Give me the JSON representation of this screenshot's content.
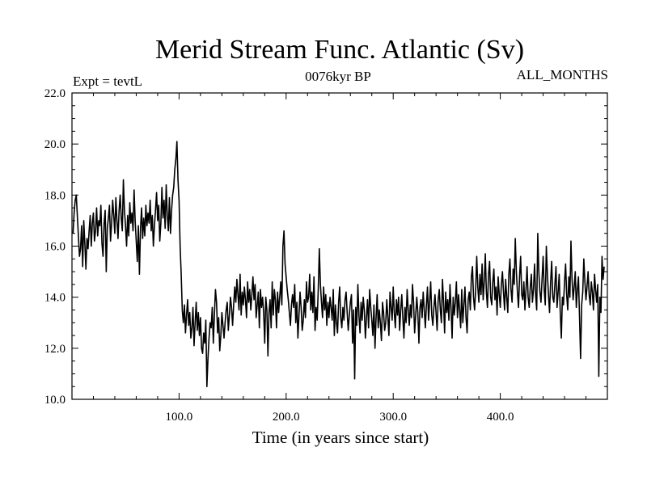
{
  "chart_data": {
    "type": "line",
    "title": "Merid Stream Func. Atlantic (Sv)",
    "subtitle_left": "Expt = tevtL",
    "subtitle_center": "0076kyr BP",
    "subtitle_right": "ALL_MONTHS",
    "xlabel": "Time (in years since start)",
    "ylabel": "",
    "xlim": [
      0,
      500
    ],
    "ylim": [
      10,
      22
    ],
    "x_ticks": [
      100,
      200,
      300,
      400
    ],
    "x_tick_labels": [
      "100.0",
      "200.0",
      "300.0",
      "400.0"
    ],
    "y_ticks": [
      10,
      12,
      14,
      16,
      18,
      20,
      22
    ],
    "y_tick_labels": [
      "10.0",
      "12.0",
      "14.0",
      "16.0",
      "18.0",
      "20.0",
      "22.0"
    ],
    "grid": false,
    "series": [
      {
        "color": "#000000",
        "x_start": 1,
        "x_step": 1,
        "values": [
          16.5,
          17.3,
          17.8,
          18.0,
          17.2,
          16.4,
          15.6,
          15.9,
          16.8,
          15.2,
          17.0,
          16.1,
          15.1,
          16.3,
          15.9,
          16.6,
          17.2,
          16.0,
          16.9,
          17.3,
          16.2,
          16.6,
          17.5,
          16.4,
          17.0,
          16.8,
          17.6,
          16.1,
          15.6,
          16.9,
          17.4,
          15.0,
          16.7,
          17.1,
          17.6,
          16.2,
          16.9,
          17.8,
          17.2,
          16.5,
          17.9,
          17.0,
          16.3,
          17.4,
          18.0,
          17.1,
          16.6,
          18.6,
          17.4,
          16.8,
          16.0,
          17.2,
          16.4,
          17.7,
          16.9,
          17.3,
          16.6,
          18.2,
          17.0,
          16.2,
          15.4,
          16.8,
          14.9,
          16.7,
          17.5,
          16.3,
          17.1,
          16.4,
          17.6,
          16.8,
          17.3,
          16.9,
          17.8,
          16.6,
          17.2,
          16.0,
          16.8,
          17.4,
          18.1,
          17.0,
          17.6,
          16.2,
          16.9,
          18.3,
          17.1,
          17.8,
          16.7,
          18.4,
          17.2,
          16.6,
          17.9,
          16.5,
          17.4,
          18.0,
          18.3,
          19.0,
          19.4,
          20.1,
          18.6,
          17.8,
          16.0,
          14.9,
          13.5,
          13.0,
          13.7,
          12.6,
          13.3,
          13.9,
          12.9,
          13.4,
          12.4,
          12.8,
          13.6,
          12.1,
          13.0,
          13.8,
          12.7,
          13.4,
          12.5,
          13.2,
          12.0,
          11.8,
          12.6,
          12.2,
          13.1,
          10.5,
          11.6,
          12.4,
          13.0,
          12.8,
          13.6,
          12.2,
          13.3,
          14.3,
          13.8,
          12.6,
          13.2,
          11.9,
          12.5,
          13.4,
          12.9,
          12.4,
          13.0,
          13.5,
          13.8,
          12.7,
          13.3,
          14.0,
          13.6,
          12.9,
          13.7,
          14.4,
          13.8,
          14.7,
          14.1,
          13.5,
          14.9,
          13.3,
          14.2,
          13.7,
          14.4,
          13.9,
          13.2,
          14.6,
          13.8,
          14.3,
          13.5,
          14.1,
          14.8,
          13.9,
          14.5,
          13.2,
          13.7,
          14.2,
          12.8,
          14.3,
          13.6,
          14.0,
          13.4,
          12.2,
          14.0,
          13.5,
          11.7,
          13.4,
          13.9,
          12.8,
          14.6,
          13.3,
          14.3,
          13.9,
          12.8,
          14.2,
          13.4,
          14.0,
          14.6,
          13.7,
          16.0,
          16.6,
          15.3,
          14.8,
          14.3,
          13.9,
          13.4,
          12.9,
          13.7,
          14.1,
          13.6,
          14.5,
          13.0,
          13.8,
          12.4,
          13.3,
          14.2,
          13.6,
          12.7,
          13.1,
          13.9,
          13.2,
          14.6,
          13.8,
          14.0,
          14.9,
          13.5,
          14.2,
          13.4,
          14.8,
          12.7,
          13.6,
          13.1,
          14.3,
          15.9,
          14.5,
          13.8,
          13.2,
          14.4,
          13.5,
          14.1,
          12.9,
          13.8,
          13.2,
          14.0,
          13.6,
          13.1,
          14.3,
          12.5,
          13.7,
          13.0,
          12.6,
          13.8,
          14.4,
          13.2,
          12.8,
          13.6,
          13.1,
          13.9,
          14.2,
          13.4,
          12.7,
          13.3,
          13.8,
          14.1,
          12.2,
          13.5,
          10.8,
          13.6,
          12.9,
          14.5,
          13.3,
          12.6,
          13.8,
          13.1,
          14.0,
          13.5,
          12.4,
          13.2,
          13.9,
          12.8,
          14.3,
          13.6,
          13.1,
          12.5,
          13.7,
          12.0,
          13.2,
          14.1,
          12.8,
          13.5,
          13.0,
          12.3,
          13.8,
          13.4,
          12.7,
          13.0,
          13.9,
          13.2,
          12.5,
          14.2,
          13.6,
          13.1,
          14.4,
          13.4,
          12.8,
          13.9,
          13.3,
          14.0,
          12.7,
          13.5,
          14.1,
          13.2,
          12.4,
          13.6,
          13.0,
          14.3,
          13.5,
          12.9,
          13.7,
          13.2,
          14.5,
          13.8,
          12.6,
          13.3,
          14.0,
          13.4,
          12.2,
          13.6,
          13.9,
          13.2,
          14.2,
          13.5,
          12.8,
          13.7,
          14.4,
          13.1,
          13.8,
          14.6,
          13.3,
          12.9,
          13.6,
          14.1,
          13.4,
          12.7,
          13.9,
          14.3,
          13.5,
          13.0,
          14.7,
          13.8,
          12.6,
          14.2,
          13.4,
          13.9,
          13.1,
          14.5,
          13.6,
          12.4,
          14.0,
          13.3,
          13.8,
          14.6,
          13.2,
          14.1,
          13.5,
          12.8,
          14.3,
          13.0,
          13.7,
          14.4,
          13.2,
          12.6,
          13.9,
          14.2,
          13.5,
          14.8,
          15.2,
          14.0,
          13.5,
          14.3,
          15.6,
          14.4,
          13.8,
          14.9,
          14.1,
          15.3,
          13.9,
          14.6,
          15.7,
          14.2,
          13.6,
          14.9,
          15.4,
          14.0,
          13.7,
          14.6,
          15.1,
          13.9,
          14.4,
          13.3,
          14.8,
          14.1,
          13.6,
          14.5,
          15.0,
          14.2,
          13.5,
          14.7,
          14.0,
          13.4,
          14.9,
          15.5,
          14.3,
          13.8,
          15.1,
          14.5,
          16.3,
          15.0,
          14.2,
          13.6,
          14.8,
          15.6,
          14.1,
          13.9,
          14.6,
          13.5,
          14.3,
          15.2,
          14.0,
          13.6,
          14.4,
          14.9,
          13.8,
          14.3,
          15.3,
          14.1,
          13.5,
          16.5,
          15.0,
          14.2,
          13.8,
          14.7,
          15.6,
          14.3,
          13.7,
          16.0,
          14.9,
          14.1,
          13.4,
          14.6,
          15.4,
          14.0,
          13.8,
          14.5,
          15.2,
          13.6,
          14.2,
          14.9,
          13.4,
          12.4,
          14.0,
          13.7,
          14.6,
          15.3,
          14.1,
          13.5,
          14.8,
          14.0,
          16.2,
          14.7,
          13.9,
          14.4,
          15.0,
          13.6,
          14.3,
          14.8,
          13.2,
          11.6,
          13.7,
          14.2,
          15.5,
          14.6,
          13.9,
          14.4,
          15.0,
          14.1,
          13.7,
          14.6,
          14.2,
          13.5,
          14.9,
          14.3,
          13.8,
          14.5,
          10.9,
          14.0,
          13.4,
          15.6,
          14.7,
          15.2
        ]
      }
    ]
  }
}
